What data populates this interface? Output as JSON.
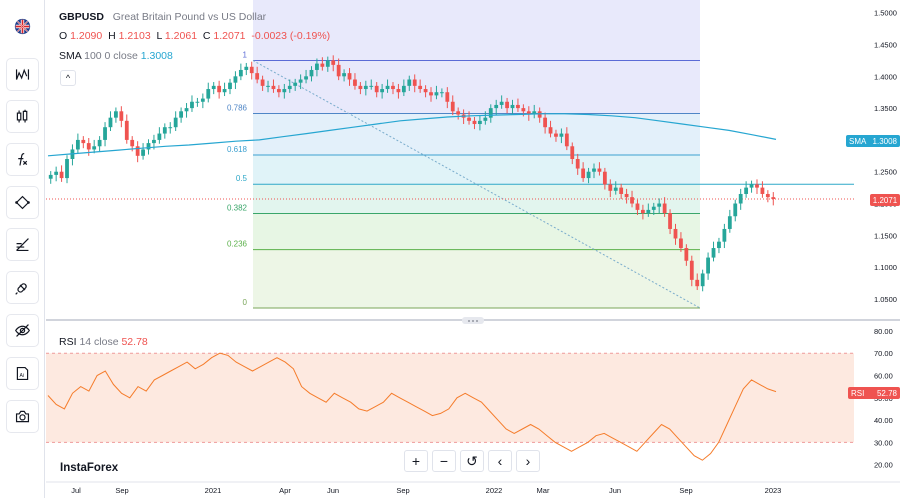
{
  "sidebar": {
    "tools": [
      {
        "name": "flag-gb-icon",
        "label": ""
      },
      {
        "name": "indicators-icon",
        "label": ""
      },
      {
        "name": "chart-type-icon",
        "label": ""
      },
      {
        "name": "function-icon",
        "label": ""
      },
      {
        "name": "drawing-tool-icon",
        "label": ""
      },
      {
        "name": "fib-tool-icon",
        "label": ""
      },
      {
        "name": "magnet-icon",
        "label": ""
      },
      {
        "name": "hide-drawings-icon",
        "label": ""
      },
      {
        "name": "ai-text-icon",
        "label": "Ai"
      },
      {
        "name": "camera-icon",
        "label": ""
      }
    ]
  },
  "legend": {
    "symbol": "GBPUSD",
    "description": "Great Britain Pound vs US Dollar",
    "o_label": "O",
    "o_val": "1.2090",
    "h_label": "H",
    "h_val": "1.2103",
    "l_label": "L",
    "l_val": "1.2061",
    "c_label": "C",
    "c_val": "1.2071",
    "change": "-0.0023 (-0.19%)",
    "sma_label": "SMA",
    "sma_params": "100 0 close",
    "sma_val": "1.3008",
    "rsi_label": "RSI",
    "rsi_params": "14 close",
    "rsi_val": "52.78",
    "collapse_symbol": "^"
  },
  "price_tags": {
    "sma_label": "SMA",
    "sma_val": "1.3008",
    "last_val": "1.2071",
    "rsi_label": "RSI",
    "rsi_val": "52.78"
  },
  "watermark": "InstaForex",
  "nav": {
    "zoom_in": "+",
    "zoom_out": "−",
    "reset": "↺",
    "prev": "‹",
    "next": "›"
  },
  "colors": {
    "up": "#26a69a",
    "down": "#ef5350",
    "sma": "#26a6d1",
    "rsi_line": "#f57c2b",
    "rsi_band": "#fde9e0",
    "last_price": "#ef5350"
  },
  "chart_data": {
    "type": "candlestick",
    "symbol": "GBPUSD",
    "price_axis": {
      "ticks": [
        1.05,
        1.1,
        1.15,
        1.2,
        1.25,
        1.3,
        1.35,
        1.4,
        1.45,
        1.5
      ],
      "range": [
        1.02,
        1.52
      ]
    },
    "rsi_axis": {
      "ticks": [
        20,
        30,
        40,
        50,
        60,
        70,
        80
      ],
      "range": [
        14,
        84
      ],
      "bands": [
        30,
        70
      ]
    },
    "x_labels": [
      "Jul",
      "Sep",
      "2021",
      "Apr",
      "Jun",
      "Sep",
      "2022",
      "Mar",
      "Jun",
      "Sep",
      "2023"
    ],
    "fibonacci": {
      "high": 1.4249,
      "low": 1.0357,
      "levels": [
        {
          "label": "1",
          "ratio": 1,
          "color": "#5b6bd6"
        },
        {
          "label": "0.786",
          "ratio": 0.786,
          "color": "#4f86c6"
        },
        {
          "label": "0.618",
          "ratio": 0.618,
          "color": "#3ba0d0"
        },
        {
          "label": "0.5",
          "ratio": 0.5,
          "color": "#2fa8c8"
        },
        {
          "label": "0.382",
          "ratio": 0.382,
          "color": "#3aa66a"
        },
        {
          "label": "0.236",
          "ratio": 0.236,
          "color": "#5bb04a"
        },
        {
          "label": "0",
          "ratio": 0,
          "color": "#7aa65a"
        }
      ]
    },
    "close": [
      1.245,
      1.25,
      1.24,
      1.27,
      1.285,
      1.3,
      1.295,
      1.285,
      1.29,
      1.3,
      1.32,
      1.335,
      1.345,
      1.33,
      1.3,
      1.29,
      1.275,
      1.285,
      1.295,
      1.3,
      1.31,
      1.32,
      1.32,
      1.335,
      1.345,
      1.35,
      1.36,
      1.36,
      1.365,
      1.38,
      1.385,
      1.375,
      1.38,
      1.39,
      1.4,
      1.41,
      1.415,
      1.405,
      1.395,
      1.385,
      1.385,
      1.38,
      1.375,
      1.38,
      1.385,
      1.39,
      1.395,
      1.4,
      1.41,
      1.42,
      1.415,
      1.425,
      1.418,
      1.4,
      1.405,
      1.395,
      1.385,
      1.38,
      1.385,
      1.385,
      1.375,
      1.38,
      1.385,
      1.38,
      1.375,
      1.385,
      1.395,
      1.385,
      1.38,
      1.375,
      1.37,
      1.375,
      1.375,
      1.36,
      1.345,
      1.34,
      1.335,
      1.33,
      1.325,
      1.33,
      1.335,
      1.35,
      1.355,
      1.36,
      1.35,
      1.355,
      1.35,
      1.345,
      1.34,
      1.345,
      1.335,
      1.32,
      1.31,
      1.305,
      1.31,
      1.29,
      1.27,
      1.255,
      1.24,
      1.25,
      1.255,
      1.25,
      1.23,
      1.22,
      1.225,
      1.215,
      1.21,
      1.2,
      1.19,
      1.185,
      1.19,
      1.195,
      1.2,
      1.185,
      1.16,
      1.145,
      1.13,
      1.11,
      1.08,
      1.07,
      1.09,
      1.115,
      1.13,
      1.14,
      1.16,
      1.18,
      1.2,
      1.215,
      1.225,
      1.23,
      1.225,
      1.215,
      1.21,
      1.2071
    ],
    "sma_100": [
      1.275,
      1.278,
      1.281,
      1.284,
      1.287,
      1.29,
      1.292,
      1.295,
      1.298,
      1.3,
      1.305,
      1.31,
      1.315,
      1.32,
      1.325,
      1.33,
      1.333,
      1.336,
      1.338,
      1.339,
      1.34,
      1.341,
      1.341,
      1.34,
      1.338,
      1.335,
      1.33,
      1.325,
      1.32,
      1.315,
      1.308,
      1.3008
    ],
    "rsi": [
      51,
      47,
      45,
      52,
      55,
      53,
      60,
      62,
      56,
      52,
      50,
      55,
      53,
      58,
      60,
      62,
      64,
      66,
      63,
      65,
      68,
      70,
      69,
      66,
      64,
      62,
      64,
      66,
      68,
      66,
      63,
      55,
      52,
      50,
      48,
      52,
      50,
      48,
      45,
      44,
      46,
      48,
      52,
      50,
      48,
      46,
      44,
      42,
      43,
      45,
      50,
      52,
      50,
      48,
      44,
      40,
      36,
      34,
      36,
      38,
      36,
      33,
      30,
      28,
      26,
      28,
      30,
      33,
      34,
      32,
      30,
      28,
      26,
      30,
      34,
      38,
      36,
      32,
      28,
      24,
      22,
      25,
      30,
      38,
      46,
      54,
      58,
      56,
      54,
      52.78
    ]
  }
}
